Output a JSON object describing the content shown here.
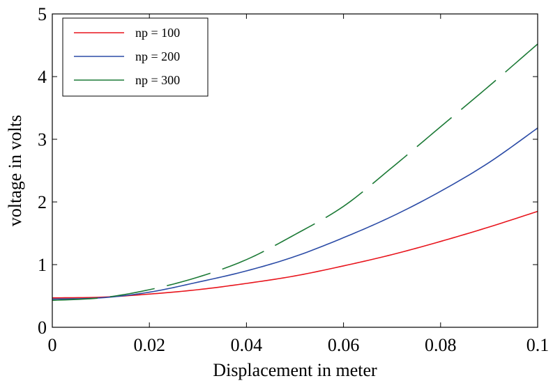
{
  "chart_data": {
    "type": "line",
    "title": "",
    "xlabel": "Displacement in meter",
    "ylabel": "voltage in volts",
    "xlim": [
      0,
      0.1
    ],
    "ylim": [
      0,
      5
    ],
    "x_ticks": [
      0,
      0.02,
      0.04,
      0.06,
      0.08,
      0.1
    ],
    "x_tick_labels": [
      "0",
      "0.02",
      "0.04",
      "0.06",
      "0.08",
      "0.1"
    ],
    "y_ticks": [
      0,
      1,
      2,
      3,
      4,
      5
    ],
    "y_tick_labels": [
      "0",
      "1",
      "2",
      "3",
      "4",
      "5"
    ],
    "grid": false,
    "legend_position": "top-left",
    "series": [
      {
        "name": "np = 100",
        "color": "#e8141c",
        "style": "solid",
        "x": [
          0,
          0.01,
          0.02,
          0.03,
          0.04,
          0.05,
          0.06,
          0.07,
          0.08,
          0.09,
          0.1
        ],
        "y": [
          0.47,
          0.48,
          0.53,
          0.6,
          0.7,
          0.82,
          0.98,
          1.16,
          1.37,
          1.6,
          1.85
        ]
      },
      {
        "name": "np = 200",
        "color": "#2b4ba6",
        "style": "solid",
        "x": [
          0,
          0.01,
          0.02,
          0.03,
          0.04,
          0.05,
          0.06,
          0.07,
          0.08,
          0.09,
          0.1
        ],
        "y": [
          0.45,
          0.47,
          0.56,
          0.72,
          0.9,
          1.13,
          1.43,
          1.77,
          2.17,
          2.63,
          3.18
        ]
      },
      {
        "name": "np = 300",
        "color": "#1c7a36",
        "style": "dashed",
        "x": [
          0,
          0.01,
          0.02,
          0.03,
          0.04,
          0.05,
          0.06,
          0.07,
          0.08,
          0.09,
          0.1
        ],
        "y": [
          0.43,
          0.47,
          0.6,
          0.8,
          1.08,
          1.48,
          1.93,
          2.55,
          3.2,
          3.85,
          4.52
        ]
      }
    ]
  }
}
